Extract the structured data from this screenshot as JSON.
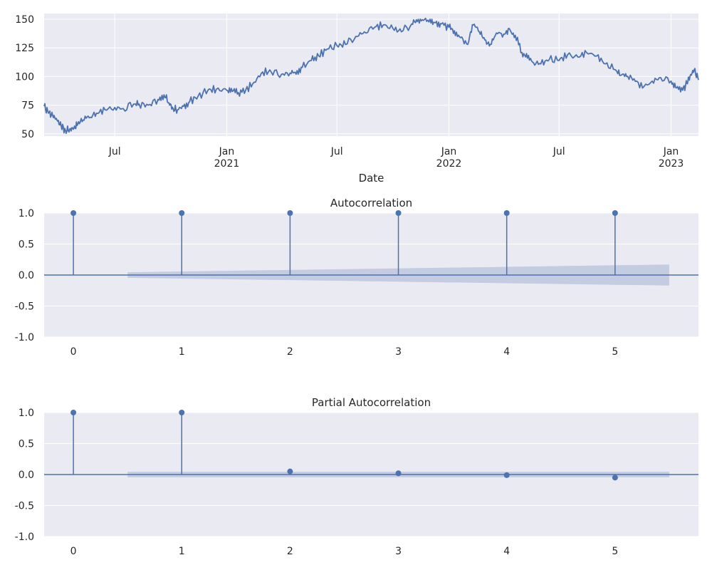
{
  "colors": {
    "panel_bg": "#EAEAF2",
    "grid": "#FFFFFF",
    "series": "#4C72B0",
    "confidence_band": "#C2CADF"
  },
  "chart_data": [
    {
      "type": "line",
      "title": "",
      "xlabel": "Date",
      "ylabel": "",
      "xlim": [
        "2020-03-07",
        "2023-02-15"
      ],
      "ylim": [
        48,
        155
      ],
      "grid": true,
      "yticks": [
        50,
        75,
        100,
        125,
        150
      ],
      "xticks": [
        {
          "date": "2020-07-01",
          "label": "Jul",
          "label2": ""
        },
        {
          "date": "2021-01-01",
          "label": "Jan",
          "label2": "2021"
        },
        {
          "date": "2021-07-01",
          "label": "Jul",
          "label2": ""
        },
        {
          "date": "2022-01-01",
          "label": "Jan",
          "label2": "2022"
        },
        {
          "date": "2022-07-01",
          "label": "Jul",
          "label2": ""
        },
        {
          "date": "2023-01-01",
          "label": "Jan",
          "label2": "2023"
        }
      ],
      "series": [
        {
          "x": [
            "2020-03-07",
            "2020-03-14",
            "2020-03-21",
            "2020-03-28",
            "2020-04-04",
            "2020-04-11",
            "2020-04-18",
            "2020-04-25",
            "2020-05-01",
            "2020-05-10",
            "2020-05-20",
            "2020-06-01",
            "2020-06-15",
            "2020-07-01",
            "2020-07-15",
            "2020-08-01",
            "2020-08-10",
            "2020-08-25",
            "2020-09-10",
            "2020-09-20",
            "2020-09-28",
            "2020-10-05",
            "2020-10-12",
            "2020-10-22",
            "2020-11-01",
            "2020-11-15",
            "2020-12-01",
            "2020-12-15",
            "2021-01-01",
            "2021-01-10",
            "2021-01-20",
            "2021-02-01",
            "2021-02-15",
            "2021-03-01",
            "2021-03-15",
            "2021-04-01",
            "2021-04-15",
            "2021-04-25",
            "2021-05-05",
            "2021-05-20",
            "2021-06-01",
            "2021-06-15",
            "2021-07-01",
            "2021-07-15",
            "2021-08-01",
            "2021-08-15",
            "2021-09-01",
            "2021-09-15",
            "2021-10-01",
            "2021-10-15",
            "2021-11-01",
            "2021-11-10",
            "2021-11-20",
            "2021-12-01",
            "2021-12-10",
            "2021-12-20",
            "2022-01-01",
            "2022-01-10",
            "2022-01-20",
            "2022-02-01",
            "2022-02-10",
            "2022-02-20",
            "2022-03-01",
            "2022-03-10",
            "2022-03-20",
            "2022-04-01",
            "2022-04-10",
            "2022-04-20",
            "2022-05-01",
            "2022-05-10",
            "2022-05-20",
            "2022-06-01",
            "2022-06-15",
            "2022-07-01",
            "2022-07-15",
            "2022-08-01",
            "2022-08-15",
            "2022-09-01",
            "2022-09-15",
            "2022-10-01",
            "2022-10-10",
            "2022-10-20",
            "2022-11-01",
            "2022-11-15",
            "2022-12-01",
            "2022-12-15",
            "2023-01-01",
            "2023-01-10",
            "2023-01-20",
            "2023-01-27",
            "2023-02-01",
            "2023-02-08",
            "2023-02-15"
          ],
          "y": [
            74,
            68,
            66,
            62,
            57,
            53,
            54,
            55,
            58,
            62,
            64,
            68,
            71,
            73,
            72,
            76,
            76,
            75,
            80,
            84,
            77,
            72,
            71,
            74,
            78,
            83,
            88,
            89,
            88,
            87,
            86,
            88,
            95,
            104,
            104,
            102,
            103,
            102,
            108,
            114,
            118,
            124,
            127,
            128,
            135,
            139,
            143,
            145,
            142,
            139,
            146,
            148,
            149,
            150,
            147,
            146,
            143,
            140,
            134,
            128,
            145,
            139,
            132,
            128,
            138,
            137,
            142,
            136,
            121,
            116,
            112,
            111,
            115,
            114,
            119,
            117,
            121,
            118,
            111,
            106,
            101,
            100,
            98,
            90,
            96,
            99,
            96,
            90,
            88,
            94,
            100,
            106,
            97
          ]
        }
      ]
    },
    {
      "type": "stem",
      "title": "Autocorrelation",
      "xlabel": "",
      "ylabel": "",
      "xlim": [
        -0.27,
        5.77
      ],
      "ylim": [
        -1.0,
        1.0
      ],
      "grid": true,
      "xticks": [
        0,
        1,
        2,
        3,
        4,
        5
      ],
      "yticks": [
        "-1.0",
        "-0.5",
        "0.0",
        "0.5",
        "1.0"
      ],
      "lags": [
        0,
        1,
        2,
        3,
        4,
        5
      ],
      "values": [
        1.0,
        1.0,
        1.0,
        1.0,
        1.0,
        1.0
      ],
      "confidence_band": {
        "x": [
          0.5,
          5.5
        ],
        "lower": [
          -0.045,
          -0.17
        ],
        "upper": [
          0.045,
          0.17
        ]
      }
    },
    {
      "type": "stem",
      "title": "Partial Autocorrelation",
      "xlabel": "",
      "ylabel": "",
      "xlim": [
        -0.27,
        5.77
      ],
      "ylim": [
        -1.0,
        1.0
      ],
      "grid": true,
      "xticks": [
        0,
        1,
        2,
        3,
        4,
        5
      ],
      "yticks": [
        "-1.0",
        "-0.5",
        "0.0",
        "0.5",
        "1.0"
      ],
      "lags": [
        0,
        1,
        2,
        3,
        4,
        5
      ],
      "values": [
        1.0,
        1.0,
        0.05,
        0.02,
        -0.01,
        -0.05
      ],
      "confidence_band": {
        "x": [
          0.5,
          5.5
        ],
        "lower": [
          -0.045,
          -0.045
        ],
        "upper": [
          0.045,
          0.045
        ]
      }
    }
  ]
}
